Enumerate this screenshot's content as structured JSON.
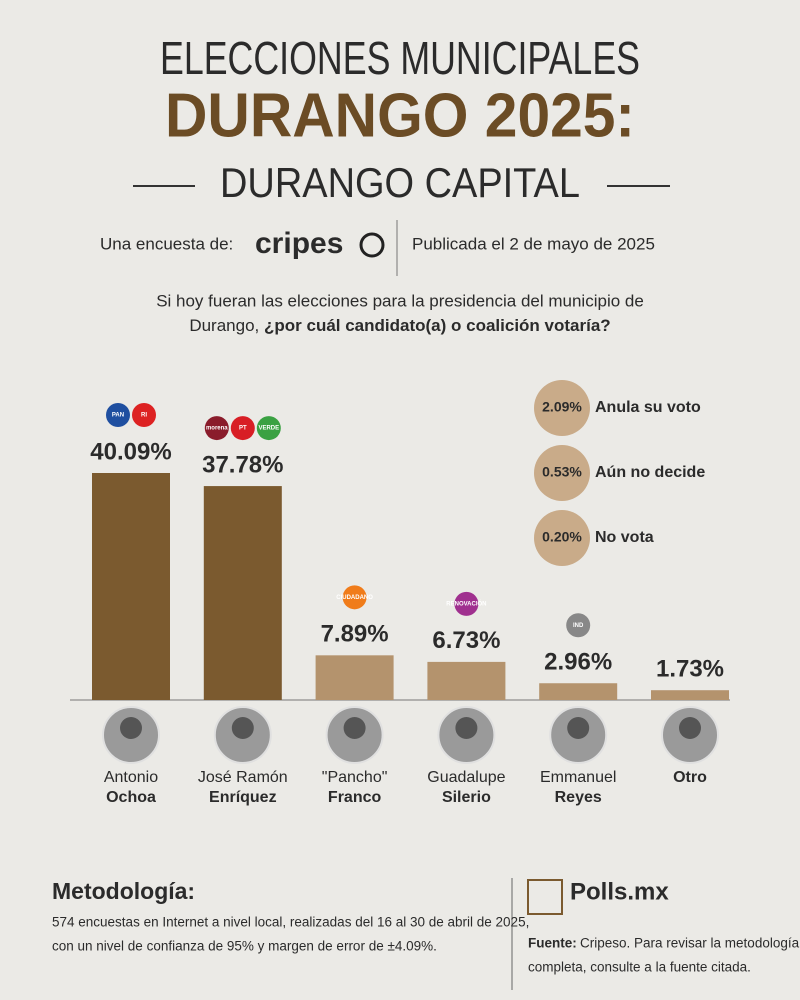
{
  "header": {
    "line1": "ELECCIONES MUNICIPALES",
    "line2": "DURANGO 2025:",
    "line3": "DURANGO CAPITAL",
    "survey_by": "Una encuesta de:",
    "pollster": "cripes",
    "published": "Publicada el 2 de mayo de 2025"
  },
  "question": {
    "line1": "Si hoy fueran las elecciones para la presidencia del municipio de",
    "line2_plain": "Durango,",
    "line2_bold": "¿por cuál candidato(a) o coalición votaría?"
  },
  "chart_data": {
    "type": "bar",
    "categories": [
      {
        "first": "Antonio",
        "last": "Ochoa"
      },
      {
        "first": "José Ramón",
        "last": "Enríquez"
      },
      {
        "first": "\"Pancho\"",
        "last": "Franco"
      },
      {
        "first": "Guadalupe",
        "last": "Silerio"
      },
      {
        "first": "Emmanuel",
        "last": "Reyes"
      },
      {
        "last": "Otro"
      }
    ],
    "values": [
      40.09,
      37.78,
      7.89,
      6.73,
      2.96,
      1.73
    ],
    "value_labels": [
      "40.09%",
      "37.78%",
      "7.89%",
      "6.73%",
      "2.96%",
      "1.73%"
    ],
    "colors": [
      "#7b5a2f",
      "#7b5a2f",
      "#b4936d",
      "#b4936d",
      "#b4936d",
      "#b4936d"
    ],
    "party_logos": [
      [
        {
          "text": "PAN",
          "color": "#1f4fa0"
        },
        {
          "text": "RI",
          "color": "#d22"
        }
      ],
      [
        {
          "text": "morena",
          "color": "#8a1c2b"
        },
        {
          "text": "PT",
          "color": "#d81e25"
        },
        {
          "text": "VERDE",
          "color": "#3aa142"
        }
      ],
      [
        {
          "text": "CIUDADANO",
          "color": "#f07c1a"
        }
      ],
      [
        {
          "text": "RENOVACIÓN",
          "color": "#a0308f"
        }
      ],
      [
        {
          "text": "IND",
          "color": "#888"
        }
      ],
      []
    ]
  },
  "other_responses": [
    {
      "value": 2.09,
      "value_label": "2.09%",
      "label": "Anula su voto"
    },
    {
      "value": 0.53,
      "value_label": "0.53%",
      "label": "Aún no decide"
    },
    {
      "value": 0.2,
      "value_label": "0.20%",
      "label": "No vota"
    }
  ],
  "footer": {
    "methodology_title": "Metodología:",
    "methodology_lines": [
      "574 encuestas en Internet a nivel local, realizadas del 16 al 30 de abril de 2025,",
      "con un nivel de confianza de 95% y margen de error de ±4.09%."
    ],
    "brand": "Polls.mx",
    "source_label": "Fuente:",
    "source_lines": [
      "Cripeso. Para revisar la metodología",
      "completa, consulte a la fuente citada."
    ]
  }
}
